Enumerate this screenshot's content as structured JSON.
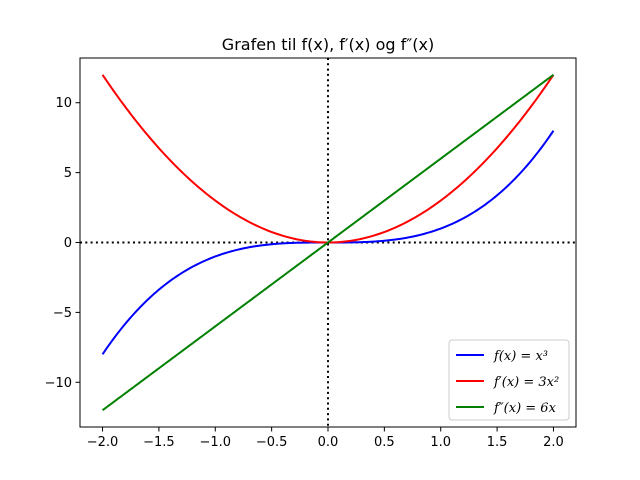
{
  "chart_data": {
    "type": "line",
    "title": "Grafen til f(x), f′(x) og f″(x)",
    "xlabel": "",
    "ylabel": "",
    "xlim": [
      -2.2,
      2.2
    ],
    "ylim": [
      -13.2,
      13.2
    ],
    "xticks": [
      -2.0,
      -1.5,
      -1.0,
      -0.5,
      0.0,
      0.5,
      1.0,
      1.5,
      2.0
    ],
    "xtick_labels": [
      "−2.0",
      "−1.5",
      "−1.0",
      "−0.5",
      "0.0",
      "0.5",
      "1.0",
      "1.5",
      "2.0"
    ],
    "yticks": [
      -10,
      -5,
      0,
      5,
      10
    ],
    "ytick_labels": [
      "−10",
      "−5",
      "0",
      "5",
      "10"
    ],
    "grid": false,
    "legend_position": "bottom-right",
    "reference_lines": {
      "horizontal_y": 0,
      "vertical_x": 0,
      "style": "dotted",
      "color": "#000000"
    },
    "x": [
      -2.0,
      -1.75,
      -1.5,
      -1.25,
      -1.0,
      -0.75,
      -0.5,
      -0.25,
      0.0,
      0.25,
      0.5,
      0.75,
      1.0,
      1.25,
      1.5,
      1.75,
      2.0
    ],
    "series": [
      {
        "name": "f(x) = x³",
        "color": "#0000ff",
        "values": [
          -8.0,
          -5.36,
          -3.375,
          -1.953,
          -1.0,
          -0.422,
          -0.125,
          -0.016,
          0.0,
          0.016,
          0.125,
          0.422,
          1.0,
          1.953,
          3.375,
          5.36,
          8.0
        ]
      },
      {
        "name": "f′(x) = 3x²",
        "color": "#ff0000",
        "values": [
          12.0,
          9.19,
          6.75,
          4.69,
          3.0,
          1.69,
          0.75,
          0.19,
          0.0,
          0.19,
          0.75,
          1.69,
          3.0,
          4.69,
          6.75,
          9.19,
          12.0
        ]
      },
      {
        "name": "f″(x) = 6x",
        "color": "#008000",
        "values": [
          -12.0,
          -10.5,
          -9.0,
          -7.5,
          -6.0,
          -4.5,
          -3.0,
          -1.5,
          0.0,
          1.5,
          3.0,
          4.5,
          6.0,
          7.5,
          9.0,
          10.5,
          12.0
        ]
      }
    ]
  }
}
